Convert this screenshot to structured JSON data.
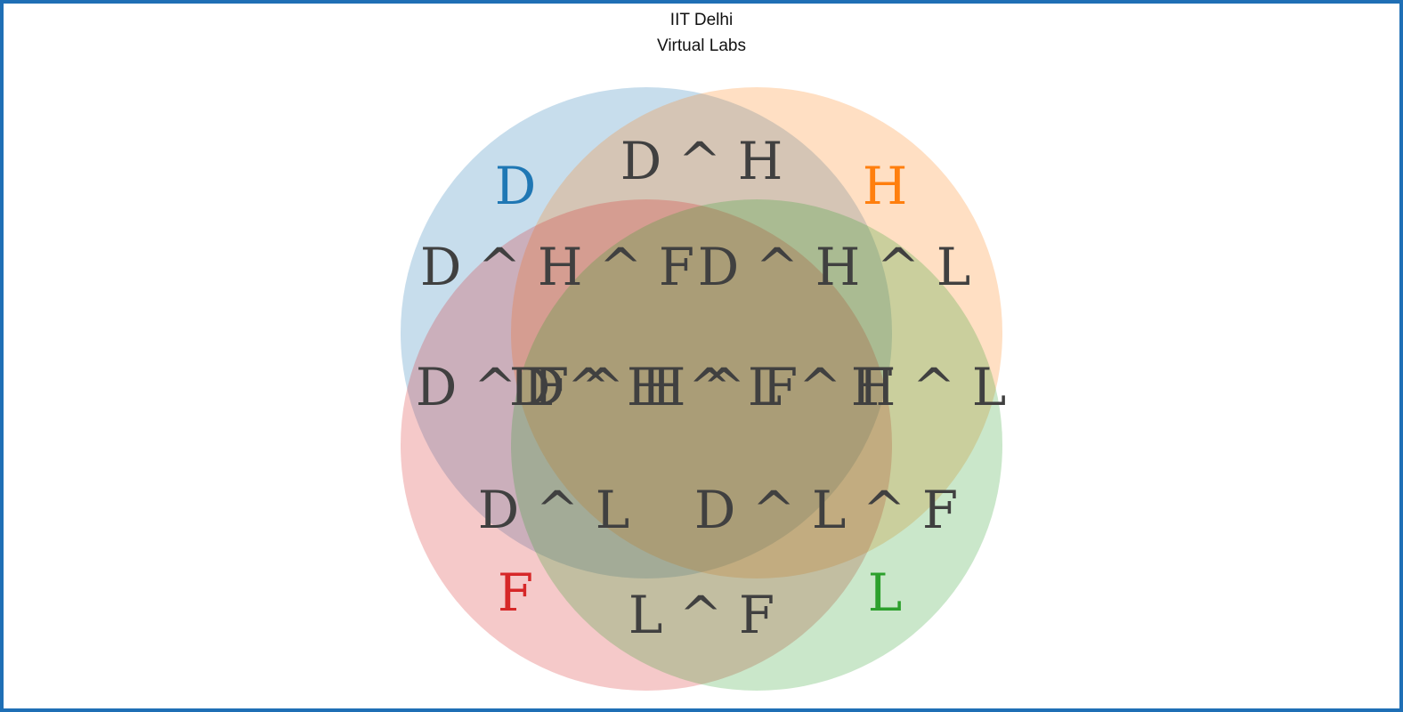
{
  "header": {
    "line1": "IIT Delhi",
    "line2": "Virtual Labs"
  },
  "venn": {
    "sets": [
      {
        "key": "D",
        "label": "D",
        "color": "#1f77b4"
      },
      {
        "key": "H",
        "label": "H",
        "color": "#ff7f0e"
      },
      {
        "key": "F",
        "label": "F",
        "color": "#d62728"
      },
      {
        "key": "L",
        "label": "L",
        "color": "#2ca02c"
      }
    ],
    "regions": {
      "DH": "D ^ H",
      "DHF": "D ^ H ^ F",
      "DHL": "D ^ H ^ L",
      "DF": "D ^ F",
      "DHF_inner": "D ^ H ^ F",
      "DHLF": "D ^ H ^ L ^ F",
      "HL": "H ^ L",
      "DL": "D ^ L",
      "DLF": "D ^ L ^ F",
      "HLF": "H ^ L ^ F",
      "LF": "L ^ F"
    }
  }
}
